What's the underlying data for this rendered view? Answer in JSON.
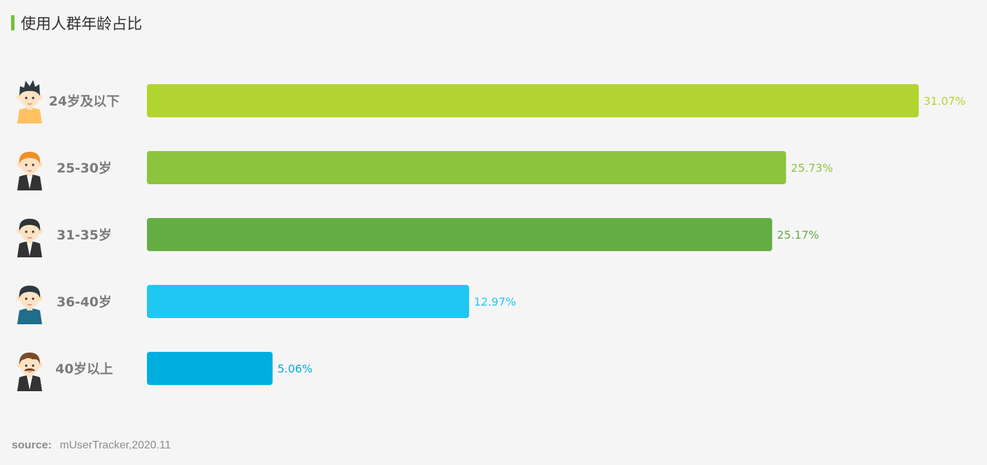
{
  "header": {
    "title": "使用人群年龄占比"
  },
  "footer": {
    "source_label": "source:",
    "source_value": "mUserTracker,2020.11"
  },
  "chart_data": {
    "type": "bar",
    "orientation": "horizontal",
    "title": "使用人群年龄占比",
    "xlabel": "",
    "ylabel": "",
    "xlim": [
      0,
      31.07
    ],
    "grid": false,
    "legend": "none",
    "categories": [
      "24岁及以下",
      "25-30岁",
      "31-35岁",
      "36-40岁",
      "40岁以上"
    ],
    "values": [
      31.07,
      25.73,
      25.17,
      12.97,
      5.06
    ],
    "value_labels": [
      "31.07%",
      "25.73%",
      "25.17%",
      "12.97%",
      "5.06%"
    ],
    "colors": [
      "#b2d430",
      "#8cc43d",
      "#64ae44",
      "#1fc7f2",
      "#00aedf"
    ],
    "icons": [
      "young-man-yellow-shirt-icon",
      "ginger-man-suit-icon",
      "man-suit-icon",
      "man-blue-shirt-icon",
      "mustache-man-suit-icon"
    ]
  }
}
